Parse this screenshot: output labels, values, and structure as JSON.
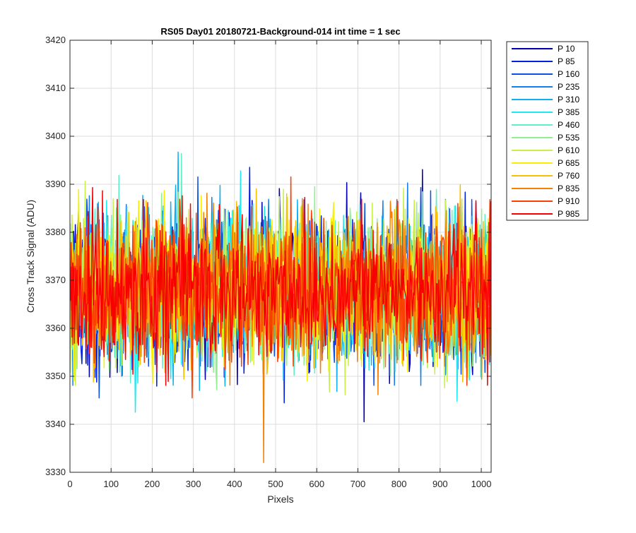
{
  "chart_data": {
    "type": "line",
    "title": "RS05 Day01 20180721-Background-014 int time = 1 sec",
    "xlabel": "Pixels",
    "ylabel": "Cross Track Signal (ADU)",
    "xlim": [
      0,
      1024
    ],
    "ylim": [
      3330,
      3420
    ],
    "xticks": [
      0,
      100,
      200,
      300,
      400,
      500,
      600,
      700,
      800,
      900,
      1000
    ],
    "yticks": [
      3330,
      3340,
      3350,
      3360,
      3370,
      3380,
      3390,
      3400,
      3410,
      3420
    ],
    "grid": true,
    "legend_position": "outside-top-right",
    "noise_model": {
      "mean": 3368,
      "spread": 7.5
    },
    "series": [
      {
        "name": "P 10",
        "color": "#0000b0"
      },
      {
        "name": "P 85",
        "color": "#0022e0"
      },
      {
        "name": "P 160",
        "color": "#0a50e8"
      },
      {
        "name": "P 235",
        "color": "#1080f0"
      },
      {
        "name": "P 310",
        "color": "#10b0f0"
      },
      {
        "name": "P 385",
        "color": "#20e8f0"
      },
      {
        "name": "P 460",
        "color": "#60f0c8"
      },
      {
        "name": "P 535",
        "color": "#90f090"
      },
      {
        "name": "P 610",
        "color": "#c8f048"
      },
      {
        "name": "P 685",
        "color": "#f8f000"
      },
      {
        "name": "P 760",
        "color": "#f8c000"
      },
      {
        "name": "P 835",
        "color": "#f88000"
      },
      {
        "name": "P 910",
        "color": "#f84000"
      },
      {
        "name": "P 985",
        "color": "#f80000"
      }
    ]
  }
}
